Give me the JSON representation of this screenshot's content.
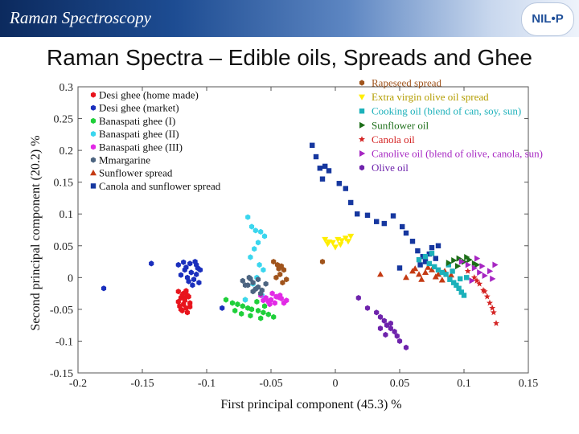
{
  "header": {
    "title": "Raman Spectroscopy",
    "logo_text": "NIL•P"
  },
  "slide_title": "Raman Spectra – Edible oils, Spreads and Ghee",
  "chart_data": {
    "type": "scatter",
    "title": "",
    "xlabel": "First principal component (45.3) %",
    "ylabel": "Second principal component (20.2) %",
    "xlim": [
      -0.2,
      0.15
    ],
    "ylim": [
      -0.15,
      0.3
    ],
    "xticks": [
      "-0.2",
      "-0.15",
      "-0.1",
      "-0.05",
      "0",
      "0.05",
      "0.1",
      "0.15"
    ],
    "xtick_values": [
      -0.2,
      -0.15,
      -0.1,
      -0.05,
      0,
      0.05,
      0.1,
      0.15
    ],
    "yticks": [
      "0.3",
      "0.25",
      "0.2",
      "0.15",
      "0.1",
      "0.05",
      "0",
      "-0.05",
      "-0.1",
      "-0.15"
    ],
    "ytick_values": [
      0.3,
      0.25,
      0.2,
      0.15,
      0.1,
      0.05,
      0,
      -0.05,
      -0.1,
      -0.15
    ],
    "grid": false,
    "legend_left": "top-left",
    "legend_right": "top-right",
    "series": [
      {
        "name": "Desi ghee (home made)",
        "color": "#e8141c",
        "marker": "hexagon",
        "legend": "left",
        "x": [
          -0.122,
          -0.118,
          -0.115,
          -0.12,
          -0.117,
          -0.113,
          -0.121,
          -0.116,
          -0.119,
          -0.114,
          -0.118,
          -0.122,
          -0.115,
          -0.119,
          -0.117,
          -0.113,
          -0.116,
          -0.12
        ],
        "y": [
          -0.022,
          -0.025,
          -0.028,
          -0.032,
          -0.036,
          -0.04,
          -0.045,
          -0.048,
          -0.052,
          -0.03,
          -0.042,
          -0.038,
          -0.055,
          -0.028,
          -0.033,
          -0.046,
          -0.021,
          -0.05
        ]
      },
      {
        "name": "Desi ghee (market)",
        "color": "#1a2fbd",
        "marker": "hexagon",
        "legend": "left",
        "x": [
          -0.143,
          -0.122,
          -0.118,
          -0.113,
          -0.108,
          -0.105,
          -0.117,
          -0.112,
          -0.108,
          -0.12,
          -0.115,
          -0.11,
          -0.106,
          -0.111,
          -0.116,
          -0.107,
          -0.114,
          -0.18,
          -0.088,
          -0.109
        ],
        "y": [
          0.022,
          0.02,
          0.024,
          0.022,
          0.02,
          0.012,
          0.012,
          0.008,
          0.005,
          0.004,
          0.0,
          -0.003,
          -0.008,
          -0.012,
          0.016,
          0.015,
          -0.006,
          -0.017,
          -0.048,
          0.025
        ]
      },
      {
        "name": "Banaspati ghee (I)",
        "color": "#1fcf3a",
        "marker": "hexagon",
        "legend": "left",
        "x": [
          -0.085,
          -0.08,
          -0.076,
          -0.072,
          -0.068,
          -0.065,
          -0.06,
          -0.056,
          -0.052,
          -0.048,
          -0.078,
          -0.073,
          -0.066,
          -0.061,
          -0.055,
          -0.07,
          -0.058
        ],
        "y": [
          -0.035,
          -0.04,
          -0.042,
          -0.045,
          -0.048,
          -0.05,
          -0.052,
          -0.055,
          -0.058,
          -0.062,
          -0.052,
          -0.057,
          -0.06,
          -0.038,
          -0.045,
          -0.035,
          -0.064
        ]
      },
      {
        "name": "Banaspati ghee (II)",
        "color": "#3ad6ee",
        "marker": "hexagon",
        "legend": "left",
        "x": [
          -0.068,
          -0.065,
          -0.062,
          -0.058,
          -0.055,
          -0.06,
          -0.063,
          -0.066,
          -0.059,
          -0.056,
          -0.061,
          -0.064,
          -0.057,
          -0.07
        ],
        "y": [
          0.095,
          0.08,
          0.074,
          0.072,
          0.065,
          0.055,
          0.045,
          0.032,
          0.02,
          0.012,
          0.0,
          -0.01,
          -0.028,
          -0.035
        ]
      },
      {
        "name": "Banaspati ghee (III)",
        "color": "#e22ae6",
        "marker": "hexagon",
        "legend": "left",
        "x": [
          -0.058,
          -0.054,
          -0.05,
          -0.046,
          -0.042,
          -0.038,
          -0.052,
          -0.047,
          -0.043,
          -0.056,
          -0.049,
          -0.04,
          -0.044,
          -0.051
        ],
        "y": [
          -0.028,
          -0.032,
          -0.035,
          -0.03,
          -0.033,
          -0.036,
          -0.038,
          -0.04,
          -0.028,
          -0.036,
          -0.025,
          -0.04,
          -0.031,
          -0.042
        ]
      },
      {
        "name": "Mmargarine",
        "color": "#4d6581",
        "marker": "hexagon",
        "legend": "left",
        "x": [
          -0.072,
          -0.068,
          -0.064,
          -0.06,
          -0.057,
          -0.054,
          -0.066,
          -0.062,
          -0.058,
          -0.07,
          -0.064,
          -0.06,
          -0.067
        ],
        "y": [
          -0.005,
          -0.012,
          -0.008,
          -0.015,
          -0.02,
          -0.01,
          -0.002,
          -0.018,
          -0.025,
          -0.012,
          -0.022,
          -0.003,
          0.0
        ]
      },
      {
        "name": "Sunflower spread",
        "color": "#c43a13",
        "marker": "triangle",
        "legend": "left",
        "x": [
          0.035,
          0.055,
          0.06,
          0.065,
          0.07,
          0.075,
          0.08,
          0.085,
          0.09,
          0.067,
          0.078,
          0.062,
          0.072,
          0.083
        ],
        "y": [
          0.005,
          0.0,
          0.01,
          0.005,
          0.008,
          0.012,
          0.005,
          0.01,
          0.004,
          -0.003,
          0.001,
          0.014,
          0.016,
          -0.004
        ]
      },
      {
        "name": "Canola and sunflower spread",
        "color": "#16379f",
        "marker": "square",
        "legend": "left",
        "x": [
          -0.018,
          -0.015,
          -0.012,
          -0.008,
          -0.005,
          -0.01,
          0.003,
          0.008,
          0.012,
          0.017,
          0.025,
          0.032,
          0.038,
          0.045,
          0.052,
          0.055,
          0.06,
          0.064,
          0.068,
          0.07,
          0.073,
          0.075,
          0.078,
          0.08,
          0.05,
          0.066
        ],
        "y": [
          0.208,
          0.19,
          0.172,
          0.175,
          0.168,
          0.155,
          0.148,
          0.14,
          0.118,
          0.1,
          0.098,
          0.088,
          0.085,
          0.097,
          0.08,
          0.07,
          0.057,
          0.042,
          0.033,
          0.025,
          0.037,
          0.047,
          0.03,
          0.05,
          0.015,
          0.02
        ]
      },
      {
        "name": "Rapeseed spread",
        "color": "#a0541c",
        "marker": "hexagon",
        "legend": "right",
        "x": [
          -0.048,
          -0.045,
          -0.042,
          -0.04,
          -0.043,
          -0.046,
          -0.038,
          -0.041,
          -0.01,
          -0.044
        ],
        "y": [
          0.025,
          0.02,
          0.018,
          0.012,
          0.005,
          0.0,
          -0.003,
          -0.008,
          0.025,
          0.014
        ]
      },
      {
        "name": "Extra virgin olive oil spread",
        "color": "#ffee00",
        "marker": "triangle-down",
        "legend": "right",
        "x": [
          -0.008,
          -0.005,
          -0.002,
          0.002,
          0.005,
          0.008,
          0.012,
          0.0,
          0.004,
          -0.006,
          0.01
        ],
        "y": [
          0.06,
          0.056,
          0.055,
          0.06,
          0.058,
          0.062,
          0.065,
          0.048,
          0.052,
          0.053,
          0.057
        ]
      },
      {
        "name": "Cooking oil (blend of can, soy, sun)",
        "color": "#1cb1ba",
        "marker": "square",
        "legend": "right",
        "x": [
          0.065,
          0.07,
          0.073,
          0.077,
          0.08,
          0.083,
          0.086,
          0.089,
          0.092,
          0.094,
          0.096,
          0.098,
          0.1,
          0.102,
          0.075,
          0.088,
          0.091,
          0.097
        ],
        "y": [
          0.028,
          0.033,
          0.022,
          0.017,
          0.012,
          0.008,
          0.005,
          -0.003,
          -0.008,
          -0.012,
          -0.017,
          -0.023,
          -0.028,
          0.0,
          0.038,
          0.02,
          0.01,
          -0.002
        ]
      },
      {
        "name": "Sunflower oil",
        "color": "#1c6e18",
        "marker": "triangle-right",
        "legend": "right",
        "x": [
          0.088,
          0.092,
          0.096,
          0.1,
          0.104,
          0.108,
          0.095,
          0.102,
          0.11
        ],
        "y": [
          0.023,
          0.027,
          0.03,
          0.025,
          0.028,
          0.022,
          0.018,
          0.032,
          0.02
        ]
      },
      {
        "name": "Canola oil",
        "color": "#d42424",
        "marker": "star",
        "legend": "right",
        "x": [
          0.103,
          0.108,
          0.112,
          0.115,
          0.118,
          0.12,
          0.122,
          0.125,
          0.11,
          0.116,
          0.123
        ],
        "y": [
          0.01,
          0.0,
          -0.01,
          -0.02,
          -0.03,
          -0.04,
          -0.048,
          -0.072,
          -0.005,
          -0.022,
          -0.055
        ]
      },
      {
        "name": "Canolive oil (blend of olive, canola, sun)",
        "color": "#a626c2",
        "marker": "triangle-right",
        "legend": "right",
        "x": [
          0.098,
          0.103,
          0.108,
          0.112,
          0.116,
          0.12,
          0.124,
          0.106,
          0.114,
          0.122,
          0.11
        ],
        "y": [
          0.025,
          0.02,
          0.015,
          0.008,
          0.003,
          0.01,
          0.02,
          -0.005,
          0.018,
          -0.002,
          0.03
        ]
      },
      {
        "name": "Olive oil",
        "color": "#6e23ac",
        "marker": "hexagon",
        "legend": "right",
        "x": [
          0.018,
          0.025,
          0.032,
          0.035,
          0.038,
          0.04,
          0.043,
          0.046,
          0.048,
          0.05,
          0.055,
          0.035,
          0.043,
          0.039
        ],
        "y": [
          -0.032,
          -0.048,
          -0.055,
          -0.062,
          -0.068,
          -0.075,
          -0.08,
          -0.085,
          -0.092,
          -0.1,
          -0.11,
          -0.08,
          -0.072,
          -0.09
        ]
      }
    ]
  }
}
